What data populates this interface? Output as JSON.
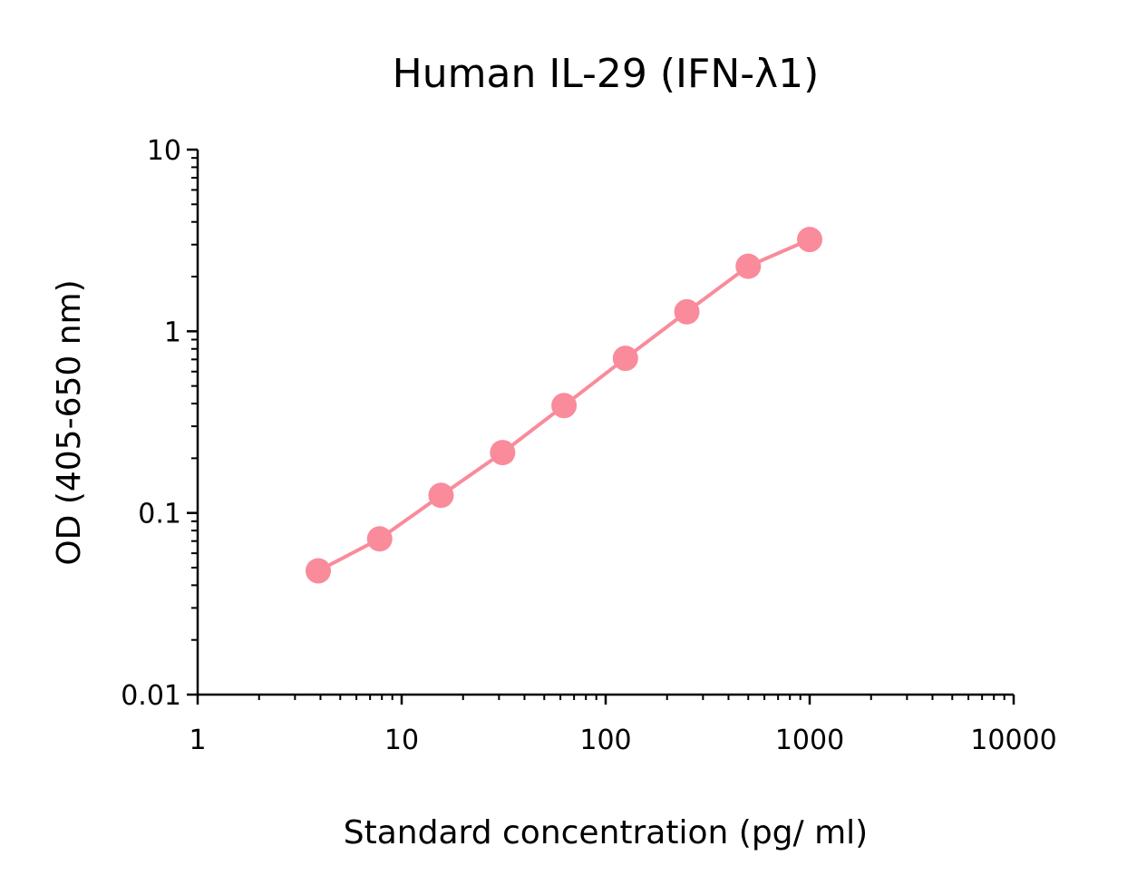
{
  "chart_data": {
    "type": "line",
    "title": "Human IL-29 (IFN-λ1)",
    "xlabel": "Standard concentration (pg/ ml)",
    "ylabel": "OD (405-650 nm)",
    "xscale": "log",
    "yscale": "log",
    "xlim": [
      1,
      10000
    ],
    "ylim": [
      0.01,
      10
    ],
    "x_ticks": [
      "1",
      "10",
      "100",
      "1000",
      "10000"
    ],
    "y_ticks": [
      "0.01",
      "0.1",
      "1",
      "10"
    ],
    "grid": false,
    "legend": "none",
    "series": [
      {
        "color": "#f98b9b",
        "x": [
          3.9,
          7.8,
          15.6,
          31.25,
          62.5,
          125,
          250,
          500,
          1000
        ],
        "y": [
          0.048,
          0.072,
          0.125,
          0.215,
          0.39,
          0.71,
          1.28,
          2.28,
          3.2
        ]
      }
    ]
  }
}
